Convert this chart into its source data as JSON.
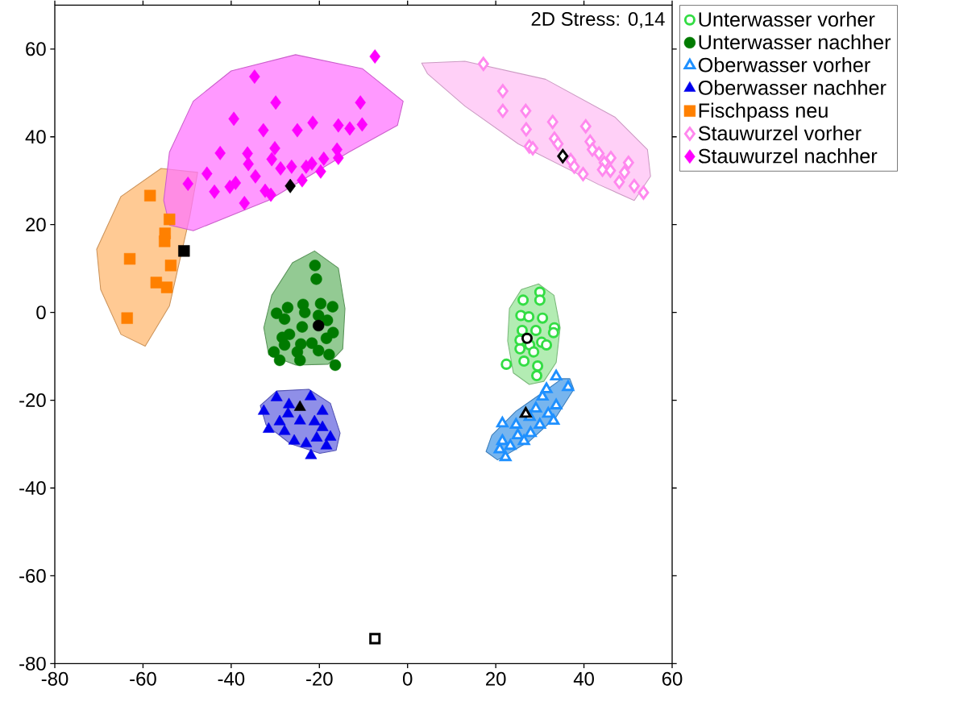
{
  "chart_data": {
    "type": "scatter",
    "xlim": [
      -80,
      60
    ],
    "ylim": [
      -80,
      70
    ],
    "xticks": [
      -80,
      -60,
      -40,
      -20,
      0,
      20,
      40,
      60
    ],
    "yticks": [
      -80,
      -60,
      -40,
      -20,
      0,
      20,
      40,
      60
    ],
    "legend": "right",
    "grid": false,
    "annotations": [
      "2D Stress: 0,14"
    ],
    "series": [
      {
        "type": "area",
        "color": "#ffb870",
        "x": [
          -47.6,
          -49.4,
          -54.0,
          -59.5,
          -65.0,
          -69.6,
          -70.5,
          -65.0,
          -55.9
        ],
        "values": [
          31.9,
          21.8,
          1.5,
          -7.7,
          -5.0,
          5.2,
          14.4,
          26.4,
          32.8
        ]
      },
      {
        "type": "area",
        "color": "#ff77ff",
        "x": [
          -55.3,
          -54.0,
          -48.6,
          -40.0,
          -25.4,
          -10.2,
          -1.0,
          -2.3,
          -13.3,
          -31.6,
          -48.6,
          -54.0
        ],
        "values": [
          25.5,
          36.5,
          48.1,
          55.0,
          58.7,
          55.5,
          48.1,
          42.6,
          36.5,
          25.5,
          18.6,
          19.9
        ]
      },
      {
        "type": "area",
        "color": "#ffc0f4",
        "x": [
          3.2,
          13.0,
          31.3,
          47.0,
          54.4,
          55.1,
          51.4,
          43.4,
          25.1,
          13.0,
          4.5
        ],
        "values": [
          56.8,
          57.2,
          53.1,
          44.5,
          37.1,
          31.0,
          25.5,
          29.1,
          38.4,
          47.0,
          54.4
        ]
      },
      {
        "type": "area",
        "color": "#6fb86f",
        "x": [
          -21.1,
          -15.7,
          -14.2,
          -14.7,
          -18.0,
          -25.3,
          -31.5,
          -32.6,
          -30.8,
          -26.1
        ],
        "values": [
          14.0,
          10.1,
          0.9,
          -8.3,
          -11.8,
          -12.0,
          -9.6,
          -3.5,
          3.9,
          11.3
        ]
      },
      {
        "type": "area",
        "color": "#99e699",
        "x": [
          29.7,
          33.2,
          34.6,
          33.7,
          30.9,
          27.6,
          24.0,
          22.7,
          23.1,
          25.8
        ],
        "values": [
          6.5,
          3.9,
          -3.5,
          -11.4,
          -15.7,
          -16.4,
          -13.8,
          -6.5,
          0.9,
          5.2
        ]
      },
      {
        "type": "area",
        "color": "#4a9ce8",
        "x": [
          36.8,
          37.7,
          33.7,
          27.7,
          20.4,
          17.8,
          19.1,
          24.6,
          32.4,
          35.0
        ],
        "values": [
          -15.1,
          -17.5,
          -23.8,
          -29.3,
          -33.6,
          -31.7,
          -28.0,
          -22.5,
          -17.0,
          -15.1
        ]
      },
      {
        "type": "area",
        "color": "#6a6ae0",
        "x": [
          -33.4,
          -29.7,
          -22.4,
          -17.5,
          -15.3,
          -16.2,
          -19.9,
          -26.6,
          -32.1
        ],
        "values": [
          -21.2,
          -17.9,
          -17.5,
          -20.7,
          -27.5,
          -31.4,
          -32.1,
          -29.9,
          -25.6
        ]
      },
      {
        "name": "Unterwasser vorher",
        "color": "#33dd44",
        "marker": "circle open",
        "x": [
          30.0,
          26.2,
          30.0,
          25.7,
          27.5,
          30.6,
          33.3,
          33.1,
          26.0,
          29.1,
          25.5,
          30.4,
          27.7,
          28.6,
          25.5,
          26.4,
          29.5,
          22.4,
          29.3,
          31.5
        ],
        "values": [
          4.6,
          2.8,
          2.8,
          -0.7,
          -1.0,
          -1.3,
          -3.5,
          -4.6,
          -4.1,
          -4.1,
          -6.3,
          -6.8,
          -7.4,
          -9.0,
          -8.3,
          -11.1,
          -12.2,
          -11.8,
          -14.4,
          -7.4
        ]
      },
      {
        "name": "Unterwasser nachher",
        "color": "#007a00",
        "marker": "circle",
        "x": [
          -21.0,
          -20.7,
          -27.2,
          -23.7,
          -19.7,
          -17.0,
          -29.7,
          -27.9,
          -23.3,
          -20.2,
          -18.2,
          -23.9,
          -26.8,
          -28.4,
          -24.2,
          -21.7,
          -16.9,
          -18.4,
          -27.9,
          -30.3,
          -29.0,
          -25.0,
          -24.4,
          -20.2,
          -17.8,
          -16.4
        ],
        "values": [
          10.7,
          7.6,
          1.1,
          1.8,
          2.0,
          1.3,
          -0.2,
          -1.5,
          0,
          -0.7,
          -1.8,
          -3.3,
          -5.0,
          -5.7,
          -7.2,
          -7.0,
          -4.6,
          -5.9,
          -7.4,
          -9.0,
          -10.9,
          -9.0,
          -10.9,
          -8.7,
          -9.6,
          -12.0
        ]
      },
      {
        "name": "Oberwasser vorher",
        "color": "#1e90ff",
        "marker": "triangle open",
        "x": [
          33.7,
          36.4,
          31.5,
          30.6,
          33.7,
          31.9,
          29.1,
          33.1,
          30.0,
          27.7,
          24.6,
          21.5,
          27.9,
          25.0,
          21.5,
          26.4,
          20.9,
          22.2,
          23.3
        ],
        "values": [
          -14.6,
          -17.0,
          -17.5,
          -19.2,
          -21.2,
          -23.1,
          -21.9,
          -24.7,
          -25.6,
          -23.8,
          -25.6,
          -25.3,
          -27.5,
          -28.0,
          -29.3,
          -29.3,
          -31.2,
          -33.0,
          -30.4
        ]
      },
      {
        "name": "Oberwasser nachher",
        "color": "#0000ee",
        "marker": "triangle",
        "x": [
          -22.0,
          -29.7,
          -32.6,
          -31.5,
          -27.9,
          -25.7,
          -23.0,
          -21.9,
          -20.6,
          -17.5,
          -18.4,
          -19.3,
          -21.1,
          -27.1,
          -24.4,
          -29.0,
          -19.3,
          -26.9
        ],
        "values": [
          -19.2,
          -19.4,
          -22.5,
          -26.6,
          -27.1,
          -29.3,
          -29.9,
          -32.6,
          -28.6,
          -28.4,
          -30.4,
          -26.2,
          -24.9,
          -23.1,
          -24.7,
          -24.9,
          -22.5,
          -21.0
        ]
      },
      {
        "name": "Fischpass neu",
        "color": "#ff8000",
        "marker": "square",
        "x": [
          -58.4,
          -63.0,
          -57.0,
          -54.6,
          -55.0,
          -54.0,
          -55.1,
          -53.7,
          -63.6
        ],
        "values": [
          26.6,
          12.2,
          6.8,
          5.7,
          18.0,
          21.2,
          16.2,
          10.7,
          -1.3
        ]
      },
      {
        "name": "Stauwurzel vorher",
        "color": "#ff88ee",
        "marker": "diamond open",
        "x": [
          17.2,
          21.6,
          21.6,
          26.8,
          32.9,
          40.4,
          26.9,
          27.6,
          28.4,
          33.3,
          34.1,
          41.4,
          41.9,
          43.4,
          46.1,
          50.1,
          44.6,
          37.0,
          37.8,
          39.8,
          44.2,
          46.0,
          48.0,
          49.2,
          51.4,
          53.5
        ],
        "values": [
          56.6,
          50.4,
          45.9,
          45.9,
          43.4,
          42.4,
          41.7,
          37.8,
          37.4,
          39.6,
          38.4,
          38.9,
          37.1,
          36.2,
          35.2,
          34.1,
          34.1,
          34.7,
          33.2,
          31.5,
          32.5,
          32.3,
          29.7,
          31.9,
          28.8,
          27.3
        ]
      },
      {
        "name": "Stauwurzel nachher",
        "color": "#ff00ff",
        "marker": "diamond",
        "x": [
          -7.4,
          -34.7,
          -29.9,
          -10.7,
          -39.4,
          -32.7,
          -25.0,
          -21.5,
          -15.7,
          -13.1,
          -10.3,
          -42.5,
          -36.3,
          -30.1,
          -30.8,
          -36.1,
          -28.8,
          -26.3,
          -23.0,
          -21.7,
          -19.0,
          -16.0,
          -15.7,
          -19.7,
          -23.9,
          -34.5,
          -45.5,
          -39.0,
          -40.3,
          -49.8,
          -43.8,
          -32.3,
          -31.0,
          -37.0
        ],
        "values": [
          58.3,
          53.7,
          47.8,
          47.8,
          44.1,
          41.5,
          41.5,
          43.2,
          42.6,
          41.9,
          42.8,
          36.3,
          36.2,
          37.4,
          34.9,
          33.8,
          32.8,
          33.2,
          33.2,
          33.9,
          35.0,
          37.1,
          35.2,
          32.1,
          30.1,
          31.0,
          31.6,
          29.5,
          28.6,
          29.3,
          27.5,
          27.7,
          26.8,
          24.9
        ]
      },
      {
        "color": "#000000",
        "marker": "circle open",
        "x": [
          27.1
        ],
        "values": [
          -5.9
        ]
      },
      {
        "color": "#000000",
        "marker": "circle",
        "x": [
          -20.2
        ],
        "values": [
          -3.0
        ]
      },
      {
        "color": "#000000",
        "marker": "triangle open",
        "x": [
          26.8
        ],
        "values": [
          -23.1
        ]
      },
      {
        "color": "#000000",
        "marker": "triangle",
        "x": [
          -24.4
        ],
        "values": [
          -21.6
        ]
      },
      {
        "color": "#000000",
        "marker": "square",
        "x": [
          -50.7
        ],
        "values": [
          14.0
        ]
      },
      {
        "color": "#000000",
        "marker": "square open",
        "x": [
          -7.4
        ],
        "values": [
          -74.3
        ]
      },
      {
        "color": "#000000",
        "marker": "diamond open",
        "x": [
          35.2
        ],
        "values": [
          35.6
        ]
      },
      {
        "color": "#000000",
        "marker": "diamond",
        "x": [
          -26.6
        ],
        "values": [
          28.8
        ]
      }
    ]
  }
}
